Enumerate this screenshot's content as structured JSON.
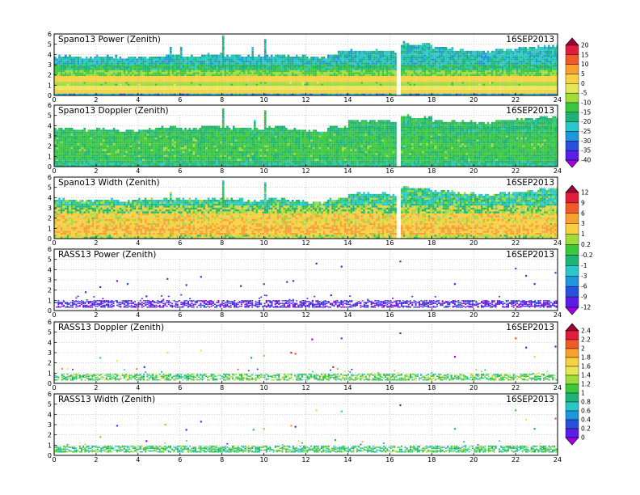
{
  "chart_data": [
    {
      "type": "heatmap",
      "title": "Spano13 Power (Zenith)",
      "date": "16SEP2013",
      "x_ticks": [
        0,
        2,
        4,
        6,
        8,
        10,
        12,
        14,
        16,
        18,
        20,
        22,
        24
      ],
      "y_ticks": [
        0,
        1,
        2,
        3,
        4,
        5,
        6
      ],
      "xlim": [
        0,
        24
      ],
      "ylim": [
        0,
        6
      ],
      "colorbar": 1,
      "top_profile": [
        [
          0,
          3.9
        ],
        [
          1,
          3.8
        ],
        [
          2,
          3.9
        ],
        [
          3,
          3.8
        ],
        [
          4,
          3.9
        ],
        [
          5,
          4.0
        ],
        [
          6,
          3.9
        ],
        [
          7,
          4.1
        ],
        [
          8,
          4.0
        ],
        [
          9,
          3.9
        ],
        [
          10,
          4.1
        ],
        [
          11,
          3.9
        ],
        [
          12,
          3.8
        ],
        [
          13,
          4.0
        ],
        [
          13.5,
          4.4
        ],
        [
          14,
          4.5
        ],
        [
          15,
          4.5
        ],
        [
          16,
          4.4
        ],
        [
          16.3,
          5.2
        ],
        [
          17,
          5.1
        ],
        [
          18,
          4.8
        ],
        [
          19,
          4.5
        ],
        [
          20,
          4.4
        ],
        [
          21,
          4.6
        ],
        [
          22,
          4.7
        ],
        [
          23,
          5.0
        ],
        [
          24,
          4.9
        ]
      ],
      "layers": [
        {
          "y": [
            0,
            0.25
          ],
          "v": -25
        },
        {
          "y": [
            0.25,
            0.6
          ],
          "v": 2
        },
        {
          "y": [
            0.6,
            1.0
          ],
          "v": -2
        },
        {
          "y": [
            1.0,
            1.5
          ],
          "v": -8
        },
        {
          "y": [
            1.5,
            2.0
          ],
          "v": 2
        },
        {
          "y": [
            2.0,
            2.6
          ],
          "v": -10
        },
        {
          "y": [
            2.6,
            3.2
          ],
          "v": -17
        },
        {
          "y": [
            3.2,
            6.0
          ],
          "v": -22
        }
      ],
      "spikes": [
        {
          "x": 8.0,
          "top": 5.9
        },
        {
          "x": 10.0,
          "top": 5.6
        },
        {
          "x": 5.5,
          "top": 4.8
        },
        {
          "x": 6.0,
          "top": 4.8
        },
        {
          "x": 9.4,
          "top": 4.8
        }
      ],
      "gap_x": [
        16.3,
        16.45
      ]
    },
    {
      "type": "heatmap",
      "title": "Spano13 Doppler (Zenith)",
      "date": "16SEP2013",
      "x_ticks": [
        0,
        2,
        4,
        6,
        8,
        10,
        12,
        14,
        16,
        18,
        20,
        22,
        24
      ],
      "y_ticks": [
        0,
        1,
        2,
        3,
        4,
        5,
        6
      ],
      "xlim": [
        0,
        24
      ],
      "ylim": [
        0,
        6
      ],
      "colorbar": 1,
      "top_profile": [
        [
          0,
          3.8
        ],
        [
          1,
          3.7
        ],
        [
          2,
          3.8
        ],
        [
          3,
          3.6
        ],
        [
          4,
          3.8
        ],
        [
          5,
          4.0
        ],
        [
          6,
          3.8
        ],
        [
          7,
          4.0
        ],
        [
          8,
          3.9
        ],
        [
          9,
          3.8
        ],
        [
          10,
          4.0
        ],
        [
          11,
          3.8
        ],
        [
          12,
          3.6
        ],
        [
          13,
          4.0
        ],
        [
          14,
          4.6
        ],
        [
          15,
          4.6
        ],
        [
          16,
          4.5
        ],
        [
          16.3,
          5.0
        ],
        [
          17,
          4.9
        ],
        [
          18,
          4.6
        ],
        [
          19,
          4.5
        ],
        [
          20,
          4.4
        ],
        [
          21,
          4.6
        ],
        [
          22,
          4.8
        ],
        [
          23,
          5.0
        ],
        [
          24,
          4.9
        ]
      ],
      "layers": [
        {
          "y": [
            0,
            0.6
          ],
          "v": -18
        },
        {
          "y": [
            0.6,
            1.4
          ],
          "v": -14
        },
        {
          "y": [
            1.4,
            2.4
          ],
          "v": -13
        },
        {
          "y": [
            2.4,
            3.4
          ],
          "v": -14
        },
        {
          "y": [
            3.4,
            6.0
          ],
          "v": -16
        }
      ],
      "spikes": [
        {
          "x": 8.0,
          "top": 5.7
        },
        {
          "x": 10.0,
          "top": 5.6
        },
        {
          "x": 9.5,
          "top": 4.6
        }
      ],
      "gap_x": [
        16.3,
        16.45
      ]
    },
    {
      "type": "heatmap",
      "title": "Spano13 Width (Zenith)",
      "date": "16SEP2013",
      "x_ticks": [
        0,
        2,
        4,
        6,
        8,
        10,
        12,
        14,
        16,
        18,
        20,
        22,
        24
      ],
      "y_ticks": [
        0,
        1,
        2,
        3,
        4,
        5,
        6
      ],
      "xlim": [
        0,
        24
      ],
      "ylim": [
        0,
        6
      ],
      "colorbar": 2,
      "top_profile": [
        [
          0,
          3.9
        ],
        [
          1,
          3.8
        ],
        [
          2,
          3.9
        ],
        [
          3,
          3.8
        ],
        [
          4,
          3.9
        ],
        [
          5,
          4.0
        ],
        [
          6,
          3.9
        ],
        [
          7,
          4.0
        ],
        [
          8,
          4.0
        ],
        [
          9,
          3.8
        ],
        [
          10,
          4.0
        ],
        [
          11,
          3.8
        ],
        [
          12,
          3.6
        ],
        [
          13,
          4.0
        ],
        [
          14,
          4.5
        ],
        [
          15,
          4.5
        ],
        [
          16,
          4.4
        ],
        [
          16.3,
          5.1
        ],
        [
          17,
          5.0
        ],
        [
          18,
          4.7
        ],
        [
          19,
          4.5
        ],
        [
          20,
          4.4
        ],
        [
          21,
          4.6
        ],
        [
          22,
          4.7
        ],
        [
          23,
          5.0
        ],
        [
          24,
          4.9
        ]
      ],
      "layers": [
        {
          "y": [
            0,
            0.5
          ],
          "v": 1
        },
        {
          "y": [
            0.5,
            1.5
          ],
          "v": 3
        },
        {
          "y": [
            1.5,
            2.5
          ],
          "v": 2
        },
        {
          "y": [
            2.5,
            3.3
          ],
          "v": 0.5
        },
        {
          "y": [
            3.3,
            6.0
          ],
          "v": -0.8
        }
      ],
      "spikes": [
        {
          "x": 8.0,
          "top": 5.8
        },
        {
          "x": 10.0,
          "top": 5.6
        },
        {
          "x": 5.5,
          "top": 4.7
        }
      ],
      "gap_x": [
        16.3,
        16.45
      ]
    },
    {
      "type": "scatter",
      "title": "RASS13 Power (Zenith)",
      "date": "16SEP2013",
      "x_ticks": [
        0,
        2,
        4,
        6,
        8,
        10,
        12,
        14,
        16,
        18,
        20,
        22,
        24
      ],
      "y_ticks": [
        0,
        1,
        2,
        3,
        4,
        5,
        6
      ],
      "xlim": [
        0,
        24
      ],
      "ylim": [
        0,
        6
      ],
      "colorbar": 2,
      "band": [
        0.4,
        1.1
      ],
      "band_v": -10,
      "sparse": [
        [
          1.5,
          1.8
        ],
        [
          2.2,
          2.3
        ],
        [
          3.0,
          2.9
        ],
        [
          3.5,
          2.6
        ],
        [
          4.4,
          1.4
        ],
        [
          5.4,
          3.1
        ],
        [
          6.3,
          2.5
        ],
        [
          7.0,
          3.3
        ],
        [
          8.9,
          2.4
        ],
        [
          10.0,
          2.6
        ],
        [
          11.1,
          2.8
        ],
        [
          11.4,
          2.9
        ],
        [
          12.5,
          4.6
        ],
        [
          13.2,
          1.5
        ],
        [
          13.7,
          4.3
        ],
        [
          16.5,
          4.8
        ],
        [
          19.1,
          2.6
        ],
        [
          22.0,
          4.1
        ],
        [
          22.5,
          3.4
        ],
        [
          22.9,
          2.6
        ],
        [
          23.9,
          3.7
        ]
      ]
    },
    {
      "type": "scatter",
      "title": "RASS13 Doppler (Zenith)",
      "date": "16SEP2013",
      "x_ticks": [
        0,
        2,
        4,
        6,
        8,
        10,
        12,
        14,
        16,
        18,
        20,
        22,
        24
      ],
      "y_ticks": [
        0,
        1,
        2,
        3,
        4,
        5,
        6
      ],
      "xlim": [
        0,
        24
      ],
      "ylim": [
        0,
        6
      ],
      "colorbar": 3,
      "band": [
        0.4,
        1.0
      ],
      "band_v": 1.1,
      "sparse": [
        [
          2.2,
          2.5
        ],
        [
          3.0,
          2.2
        ],
        [
          4.3,
          1.6
        ],
        [
          5.4,
          3.0
        ],
        [
          7.0,
          3.2
        ],
        [
          9.4,
          2.5
        ],
        [
          10.0,
          2.7
        ],
        [
          11.3,
          3.0
        ],
        [
          11.5,
          2.9
        ],
        [
          12.3,
          4.3
        ],
        [
          13.3,
          1.6
        ],
        [
          13.7,
          4.4
        ],
        [
          16.5,
          4.9
        ],
        [
          19.1,
          2.6
        ],
        [
          22.0,
          4.4
        ],
        [
          22.5,
          3.5
        ],
        [
          22.9,
          2.6
        ],
        [
          23.9,
          3.6
        ]
      ]
    },
    {
      "type": "scatter",
      "title": "RASS13 Width (Zenith)",
      "date": "16SEP2013",
      "x_ticks": [
        0,
        2,
        4,
        6,
        8,
        10,
        12,
        14,
        16,
        18,
        20,
        22,
        24
      ],
      "y_ticks": [
        0,
        1,
        2,
        3,
        4,
        5,
        6
      ],
      "xlim": [
        0,
        24
      ],
      "ylim": [
        0,
        6
      ],
      "colorbar": 3,
      "band": [
        0.4,
        1.0
      ],
      "band_v": 1.0,
      "sparse": [
        [
          2.2,
          1.8
        ],
        [
          3.0,
          2.9
        ],
        [
          4.4,
          1.4
        ],
        [
          5.3,
          3.0
        ],
        [
          6.3,
          2.5
        ],
        [
          7.0,
          3.3
        ],
        [
          9.5,
          2.5
        ],
        [
          10.0,
          2.6
        ],
        [
          11.3,
          2.9
        ],
        [
          11.5,
          2.8
        ],
        [
          12.5,
          4.4
        ],
        [
          13.4,
          1.5
        ],
        [
          13.7,
          4.3
        ],
        [
          16.5,
          4.9
        ],
        [
          19.1,
          2.6
        ],
        [
          22.0,
          4.4
        ],
        [
          22.5,
          3.5
        ],
        [
          22.9,
          2.6
        ],
        [
          23.9,
          3.6
        ]
      ]
    }
  ],
  "colorbars": [
    {
      "labels": [
        "20",
        "15",
        "10",
        "5",
        "0",
        "-5",
        "-10",
        "-15",
        "-20",
        "-25",
        "-30",
        "-35",
        "-40"
      ],
      "values": [
        20,
        15,
        10,
        5,
        0,
        -5,
        -10,
        -15,
        -20,
        -25,
        -30,
        -35,
        -40
      ],
      "colors": [
        "#a0003c",
        "#e01e3c",
        "#f05a28",
        "#f8a030",
        "#f8d040",
        "#e6e65a",
        "#a0dc3c",
        "#3cc83c",
        "#1eb478",
        "#28c8c8",
        "#1e96dc",
        "#2850dc",
        "#5a1ee6",
        "#a000e6"
      ]
    },
    {
      "labels": [
        "12",
        "9",
        "6",
        "3",
        "1",
        "0.2",
        "-0.2",
        "-1",
        "-3",
        "-6",
        "-9",
        "-12"
      ],
      "values": [
        12,
        9,
        6,
        3,
        1,
        0.2,
        -0.2,
        -1,
        -3,
        -6,
        -9,
        -12
      ],
      "colors": [
        "#a0003c",
        "#e01e3c",
        "#f05a28",
        "#f8a030",
        "#f8d040",
        "#a0dc3c",
        "#3cc83c",
        "#1eb478",
        "#28c8c8",
        "#1e96dc",
        "#2850dc",
        "#5a1ee6",
        "#a000e6"
      ]
    },
    {
      "labels": [
        "2.4",
        "2.2",
        "2",
        "1.8",
        "1.6",
        "1.4",
        "1.2",
        "1",
        "0.8",
        "0.6",
        "0.4",
        "0.2",
        "0"
      ],
      "values": [
        2.4,
        2.2,
        2,
        1.8,
        1.6,
        1.4,
        1.2,
        1,
        0.8,
        0.6,
        0.4,
        0.2,
        0
      ],
      "colors": [
        "#a0003c",
        "#e01e3c",
        "#f05a28",
        "#f8a030",
        "#f8d040",
        "#e6e65a",
        "#a0dc3c",
        "#3cc83c",
        "#1eb478",
        "#28c8c8",
        "#1e96dc",
        "#2850dc",
        "#5a1ee6",
        "#a000e6"
      ]
    }
  ]
}
